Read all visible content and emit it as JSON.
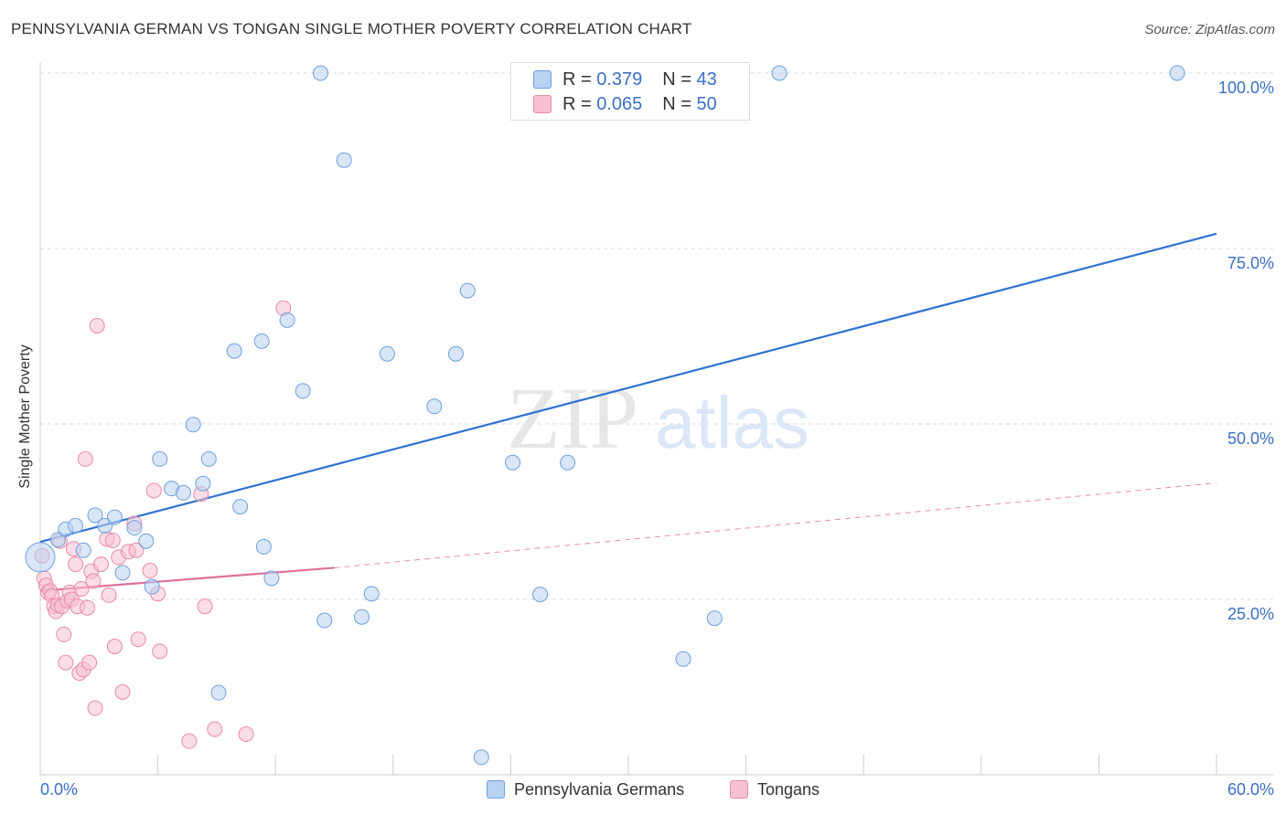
{
  "title": "PENNSYLVANIA GERMAN VS TONGAN SINGLE MOTHER POVERTY CORRELATION CHART",
  "source": "Source: ZipAtlas.com",
  "watermark": {
    "zip": "ZIP",
    "atlas": "atlas"
  },
  "colors": {
    "blue_fill": "#b8d2f2",
    "blue_stroke": "#6f9fdc",
    "blue_line": "#2f72d0",
    "pink_fill": "#f7c1d2",
    "pink_stroke": "#e88aa8",
    "pink_line": "#e0709a",
    "tick_label": "#3a6fc4",
    "grid": "#d9d9d9"
  },
  "legend": {
    "rows": [
      {
        "r_label": "R =",
        "r_value": "0.379",
        "n_label": "N =",
        "n_value": "43",
        "series": "blue"
      },
      {
        "r_label": "R =",
        "r_value": "0.065",
        "n_label": "N =",
        "n_value": "50",
        "series": "pink"
      }
    ]
  },
  "bottom_legend": [
    {
      "label": "Pennsylvania Germans",
      "series": "blue"
    },
    {
      "label": "Tongans",
      "series": "pink"
    }
  ],
  "chart_data": {
    "type": "scatter",
    "title": "PENNSYLVANIA GERMAN VS TONGAN SINGLE MOTHER POVERTY CORRELATION CHART",
    "ylabel": "Single Mother Poverty",
    "xlabel": "",
    "xlim": [
      0,
      60
    ],
    "ylim": [
      0,
      105
    ],
    "x_tick_labels": [
      {
        "value": 0,
        "label": "0.0%"
      },
      {
        "value": 60,
        "label": "60.0%"
      }
    ],
    "y_tick_labels": [
      {
        "value": 25,
        "label": "25.0%"
      },
      {
        "value": 50,
        "label": "50.0%"
      },
      {
        "value": 75,
        "label": "75.0%"
      },
      {
        "value": 100,
        "label": "100.0%"
      }
    ],
    "grid": {
      "horizontal": true,
      "style": "dashed"
    },
    "series": [
      {
        "name": "Pennsylvania Germans",
        "color": "#b8d2f2",
        "points": [
          [
            0.0,
            31.0
          ],
          [
            0.9,
            33.5
          ],
          [
            1.3,
            35.0
          ],
          [
            1.8,
            35.5
          ],
          [
            2.2,
            32.0
          ],
          [
            2.8,
            37.0
          ],
          [
            3.3,
            35.5
          ],
          [
            3.8,
            36.7
          ],
          [
            4.2,
            28.8
          ],
          [
            4.8,
            35.2
          ],
          [
            5.4,
            33.3
          ],
          [
            5.7,
            26.8
          ],
          [
            6.1,
            45.0
          ],
          [
            6.7,
            40.8
          ],
          [
            7.3,
            40.2
          ],
          [
            7.8,
            49.9
          ],
          [
            8.3,
            41.5
          ],
          [
            8.6,
            45.0
          ],
          [
            9.1,
            11.7
          ],
          [
            9.9,
            60.4
          ],
          [
            10.2,
            38.2
          ],
          [
            11.3,
            61.8
          ],
          [
            11.4,
            32.5
          ],
          [
            11.8,
            28.0
          ],
          [
            12.6,
            64.8
          ],
          [
            13.4,
            54.7
          ],
          [
            14.3,
            100.0
          ],
          [
            14.5,
            22.0
          ],
          [
            15.5,
            87.6
          ],
          [
            16.4,
            22.5
          ],
          [
            16.9,
            25.8
          ],
          [
            17.7,
            60.0
          ],
          [
            20.1,
            52.5
          ],
          [
            21.2,
            60.0
          ],
          [
            21.8,
            69.0
          ],
          [
            22.5,
            2.5
          ],
          [
            24.1,
            44.5
          ],
          [
            25.5,
            25.7
          ],
          [
            26.9,
            44.5
          ],
          [
            32.8,
            16.5
          ],
          [
            34.4,
            22.3
          ],
          [
            37.7,
            100.0
          ],
          [
            58.0,
            100.0
          ]
        ],
        "trendline": {
          "x": [
            0,
            60
          ],
          "y": [
            33.2,
            77.1
          ]
        }
      },
      {
        "name": "Tongans",
        "color": "#f7c1d2",
        "points": [
          [
            0.1,
            31.2
          ],
          [
            0.2,
            28.0
          ],
          [
            0.3,
            27.0
          ],
          [
            0.4,
            26.0
          ],
          [
            0.5,
            26.2
          ],
          [
            0.6,
            25.5
          ],
          [
            0.7,
            24.0
          ],
          [
            0.8,
            23.3
          ],
          [
            0.9,
            24.2
          ],
          [
            1.0,
            33.3
          ],
          [
            1.1,
            24.0
          ],
          [
            1.2,
            20.0
          ],
          [
            1.3,
            16.0
          ],
          [
            1.4,
            24.8
          ],
          [
            1.5,
            26.0
          ],
          [
            1.6,
            25.0
          ],
          [
            1.7,
            32.2
          ],
          [
            1.8,
            30.0
          ],
          [
            1.9,
            24.0
          ],
          [
            2.0,
            14.5
          ],
          [
            2.1,
            26.5
          ],
          [
            2.2,
            15.0
          ],
          [
            2.3,
            45.0
          ],
          [
            2.4,
            23.8
          ],
          [
            2.5,
            16.0
          ],
          [
            2.6,
            29.0
          ],
          [
            2.7,
            27.6
          ],
          [
            2.8,
            9.5
          ],
          [
            2.9,
            64.0
          ],
          [
            3.1,
            30.0
          ],
          [
            3.4,
            33.6
          ],
          [
            3.5,
            25.6
          ],
          [
            3.7,
            33.4
          ],
          [
            3.8,
            18.3
          ],
          [
            4.0,
            31.0
          ],
          [
            4.2,
            11.8
          ],
          [
            4.5,
            31.8
          ],
          [
            4.8,
            35.8
          ],
          [
            5.0,
            19.3
          ],
          [
            5.6,
            29.1
          ],
          [
            5.8,
            40.5
          ],
          [
            6.0,
            25.8
          ],
          [
            6.1,
            17.6
          ],
          [
            7.6,
            4.8
          ],
          [
            8.2,
            40.0
          ],
          [
            8.4,
            24.0
          ],
          [
            8.9,
            6.5
          ],
          [
            10.5,
            5.8
          ],
          [
            12.4,
            66.5
          ],
          [
            4.9,
            32.0
          ]
        ],
        "trendline": {
          "x": [
            0,
            15
          ],
          "y": [
            26.2,
            29.5
          ]
        },
        "trendline_extension": {
          "x": [
            15,
            60
          ],
          "y": [
            29.5,
            41.6
          ]
        }
      }
    ]
  }
}
